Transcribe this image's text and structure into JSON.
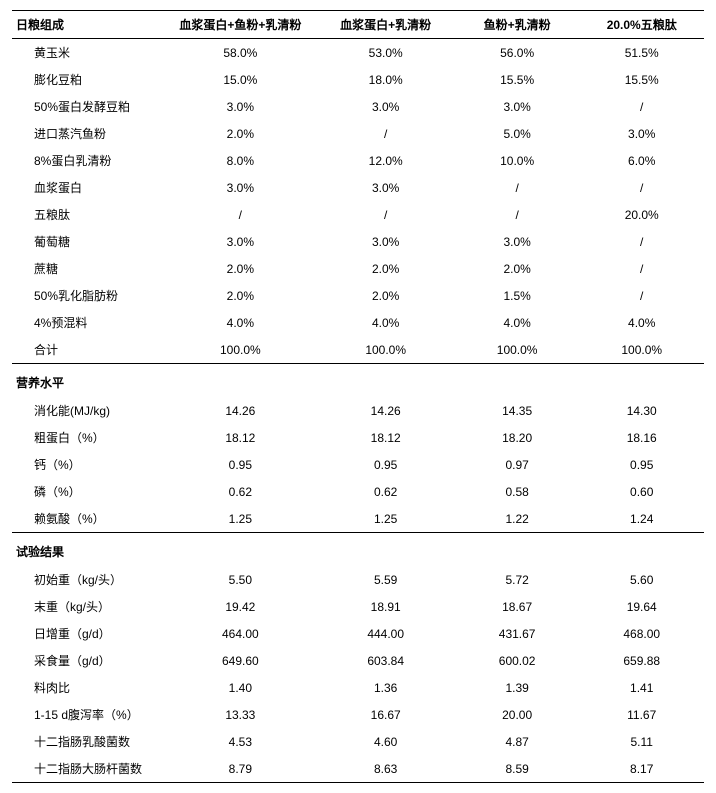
{
  "columns": [
    "日粮组成",
    "血浆蛋白+鱼粉+乳清粉",
    "血浆蛋白+乳清粉",
    "鱼粉+乳清粉",
    "20.0%五粮肽"
  ],
  "sections": [
    {
      "header": null,
      "rows": [
        {
          "label": "黄玉米",
          "vals": [
            "58.0%",
            "53.0%",
            "56.0%",
            "51.5%"
          ]
        },
        {
          "label": "膨化豆粕",
          "vals": [
            "15.0%",
            "18.0%",
            "15.5%",
            "15.5%"
          ]
        },
        {
          "label": "50%蛋白发酵豆粕",
          "vals": [
            "3.0%",
            "3.0%",
            "3.0%",
            "/"
          ]
        },
        {
          "label": "进口蒸汽鱼粉",
          "vals": [
            "2.0%",
            "/",
            "5.0%",
            "3.0%"
          ]
        },
        {
          "label": "8%蛋白乳清粉",
          "vals": [
            "8.0%",
            "12.0%",
            "10.0%",
            "6.0%"
          ]
        },
        {
          "label": "血浆蛋白",
          "vals": [
            "3.0%",
            "3.0%",
            "/",
            "/"
          ]
        },
        {
          "label": "五粮肽",
          "vals": [
            "/",
            "/",
            "/",
            "20.0%"
          ]
        },
        {
          "label": "葡萄糖",
          "vals": [
            "3.0%",
            "3.0%",
            "3.0%",
            "/"
          ]
        },
        {
          "label": "蔗糖",
          "vals": [
            "2.0%",
            "2.0%",
            "2.0%",
            "/"
          ]
        },
        {
          "label": "50%乳化脂肪粉",
          "vals": [
            "2.0%",
            "2.0%",
            "1.5%",
            "/"
          ]
        },
        {
          "label": "4%预混料",
          "vals": [
            "4.0%",
            "4.0%",
            "4.0%",
            "4.0%"
          ]
        },
        {
          "label": "合计",
          "vals": [
            "100.0%",
            "100.0%",
            "100.0%",
            "100.0%"
          ]
        }
      ]
    },
    {
      "header": "营养水平",
      "rows": [
        {
          "label": "消化能(MJ/kg)",
          "vals": [
            "14.26",
            "14.26",
            "14.35",
            "14.30"
          ]
        },
        {
          "label": "粗蛋白（%）",
          "vals": [
            "18.12",
            "18.12",
            "18.20",
            "18.16"
          ]
        },
        {
          "label": "钙（%）",
          "vals": [
            "0.95",
            "0.95",
            "0.97",
            "0.95"
          ]
        },
        {
          "label": "磷（%）",
          "vals": [
            "0.62",
            "0.62",
            "0.58",
            "0.60"
          ]
        },
        {
          "label": "赖氨酸（%）",
          "vals": [
            "1.25",
            "1.25",
            "1.22",
            "1.24"
          ]
        }
      ]
    },
    {
      "header": "试验结果",
      "rows": [
        {
          "label": "初始重（kg/头）",
          "vals": [
            "5.50",
            "5.59",
            "5.72",
            "5.60"
          ]
        },
        {
          "label": "末重（kg/头）",
          "vals": [
            "19.42",
            "18.91",
            "18.67",
            "19.64"
          ]
        },
        {
          "label": "日增重（g/d）",
          "vals": [
            "464.00",
            "444.00",
            "431.67",
            "468.00"
          ]
        },
        {
          "label": "采食量（g/d）",
          "vals": [
            "649.60",
            "603.84",
            "600.02",
            "659.88"
          ]
        },
        {
          "label": "料肉比",
          "vals": [
            "1.40",
            "1.36",
            "1.39",
            "1.41"
          ]
        },
        {
          "label": "1-15 d腹泻率（%）",
          "vals": [
            "13.33",
            "16.67",
            "20.00",
            "11.67"
          ]
        },
        {
          "label": "十二指肠乳酸菌数",
          "vals": [
            "4.53",
            "4.60",
            "4.87",
            "5.11"
          ]
        },
        {
          "label": "十二指肠大肠杆菌数",
          "vals": [
            "8.79",
            "8.63",
            "8.59",
            "8.17"
          ]
        }
      ]
    }
  ]
}
